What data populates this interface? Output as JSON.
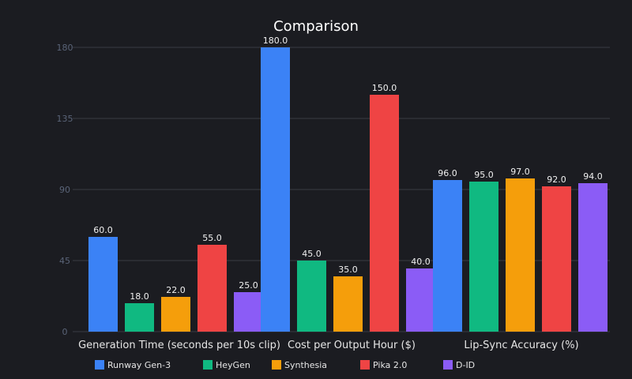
{
  "chart_data": {
    "type": "bar",
    "title": "Comparison",
    "xlabel": "",
    "ylabel": "",
    "ylim": [
      0,
      180
    ],
    "yticks": [
      0,
      45,
      90,
      135,
      180
    ],
    "grid": true,
    "legend_position": "bottom",
    "categories": [
      "Generation Time (seconds per 10s clip)",
      "Cost per Output Hour ($)",
      "Lip-Sync Accuracy (%)"
    ],
    "series": [
      {
        "name": "Runway Gen-3",
        "color": "#3b82f6",
        "values": [
          60.0,
          180.0,
          96.0
        ]
      },
      {
        "name": "HeyGen",
        "color": "#10b981",
        "values": [
          18.0,
          45.0,
          95.0
        ]
      },
      {
        "name": "Synthesia",
        "color": "#f59e0b",
        "values": [
          22.0,
          35.0,
          97.0
        ]
      },
      {
        "name": "Pika 2.0",
        "color": "#ef4444",
        "values": [
          55.0,
          150.0,
          92.0
        ]
      },
      {
        "name": "D-ID",
        "color": "#8b5cf6",
        "values": [
          25.0,
          40.0,
          94.0
        ]
      }
    ]
  }
}
